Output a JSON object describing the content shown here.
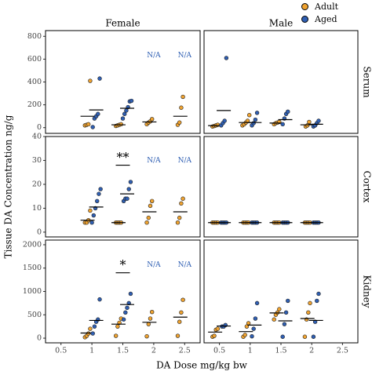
{
  "colors": {
    "adult": "#F0A330",
    "aged": "#2F5FB3",
    "na_text": "#2F5FB3"
  },
  "legend": [
    {
      "name": "Adult",
      "color": "#F0A330"
    },
    {
      "name": "Aged",
      "color": "#2F5FB3"
    }
  ],
  "na_label": "N/A",
  "chart_data": {
    "type": "scatter",
    "xlabel": "DA Dose mg/kg bw",
    "ylabel": "Tissue DA Concentration ng/g",
    "columns": [
      "Female",
      "Male"
    ],
    "rows": [
      "Serum",
      "Cortex",
      "Kidney"
    ],
    "x_ticks": [
      "0.5",
      "1",
      "1.5",
      "2",
      "2.5"
    ],
    "xlim": [
      0.25,
      2.75
    ],
    "ylim": {
      "Serum": [
        -50,
        850
      ],
      "Cortex": [
        -2,
        40
      ],
      "Kidney": [
        -100,
        2100
      ]
    },
    "y_ticks": {
      "Serum": [
        "0",
        "200",
        "400",
        "600",
        "800"
      ],
      "Cortex": [
        "0",
        "10",
        "20",
        "30",
        "40"
      ],
      "Kidney": [
        "0",
        "500",
        "1000",
        "1500",
        "2000"
      ]
    },
    "panels": [
      {
        "row": "Serum",
        "col": "Female",
        "groups": [
          {
            "dose": 1,
            "series": "Adult",
            "values": [
              20,
              25,
              30,
              410
            ],
            "mean": 100
          },
          {
            "dose": 1,
            "series": "Aged",
            "values": [
              5,
              80,
              100,
              120,
              430
            ],
            "mean": 155
          },
          {
            "dose": 1.5,
            "series": "Adult",
            "values": [
              15,
              20,
              25,
              30
            ],
            "mean": 25
          },
          {
            "dose": 1.5,
            "series": "Aged",
            "values": [
              80,
              120,
              150,
              180,
              230,
              235
            ],
            "mean": 170
          },
          {
            "dose": 2,
            "series": "Adult",
            "values": [
              30,
              45,
              55,
              75
            ],
            "mean": 50
          },
          {
            "dose": 2.5,
            "series": "Adult",
            "values": [
              25,
              45,
              175,
              270
            ],
            "mean": 100
          }
        ],
        "na": [
          2,
          2.5
        ],
        "annotations": []
      },
      {
        "row": "Serum",
        "col": "Male",
        "groups": [
          {
            "dose": 0.5,
            "series": "Adult",
            "values": [
              10,
              15,
              20,
              25
            ],
            "mean": 18
          },
          {
            "dose": 0.5,
            "series": "Aged",
            "values": [
              20,
              40,
              60,
              610
            ],
            "mean": 150
          },
          {
            "dose": 1,
            "series": "Adult",
            "values": [
              20,
              30,
              45,
              60,
              110
            ],
            "mean": 45
          },
          {
            "dose": 1,
            "series": "Aged",
            "values": [
              20,
              40,
              70,
              130
            ],
            "mean": 45
          },
          {
            "dose": 1.5,
            "series": "Adult",
            "values": [
              30,
              40,
              45,
              50
            ],
            "mean": 40
          },
          {
            "dose": 1.5,
            "series": "Aged",
            "values": [
              30,
              80,
              120,
              140
            ],
            "mean": 70
          },
          {
            "dose": 2,
            "series": "Adult",
            "values": [
              10,
              20,
              50
            ],
            "mean": 25
          },
          {
            "dose": 2,
            "series": "Aged",
            "values": [
              10,
              20,
              40,
              60
            ],
            "mean": 30
          }
        ],
        "na": [],
        "annotations": []
      },
      {
        "row": "Cortex",
        "col": "Female",
        "groups": [
          {
            "dose": 1,
            "series": "Adult",
            "values": [
              4,
              4,
              5,
              9
            ],
            "mean": 5
          },
          {
            "dose": 1,
            "series": "Aged",
            "values": [
              4,
              7,
              10,
              13,
              16,
              18
            ],
            "mean": 10.5
          },
          {
            "dose": 1.5,
            "series": "Adult",
            "values": [
              4,
              4,
              4,
              4
            ],
            "mean": 4
          },
          {
            "dose": 1.5,
            "series": "Aged",
            "values": [
              13,
              14,
              14,
              18,
              21
            ],
            "mean": 16
          },
          {
            "dose": 2,
            "series": "Adult",
            "values": [
              4,
              6,
              11,
              13
            ],
            "mean": 8.5
          },
          {
            "dose": 2.5,
            "series": "Adult",
            "values": [
              4,
              6,
              12,
              14
            ],
            "mean": 8.5
          }
        ],
        "na": [
          2,
          2.5
        ],
        "annotations": [
          {
            "dose": 1.5,
            "text": "**",
            "line_y": 28
          }
        ]
      },
      {
        "row": "Cortex",
        "col": "Male",
        "groups": [
          {
            "dose": 0.5,
            "series": "Adult",
            "values": [
              4,
              4,
              4,
              4
            ],
            "mean": 4
          },
          {
            "dose": 0.5,
            "series": "Aged",
            "values": [
              4,
              4,
              4,
              4
            ],
            "mean": 4
          },
          {
            "dose": 1,
            "series": "Adult",
            "values": [
              4,
              4,
              4,
              4
            ],
            "mean": 4
          },
          {
            "dose": 1,
            "series": "Aged",
            "values": [
              4,
              4,
              4,
              4
            ],
            "mean": 4
          },
          {
            "dose": 1.5,
            "series": "Adult",
            "values": [
              4,
              4,
              4,
              4
            ],
            "mean": 4
          },
          {
            "dose": 1.5,
            "series": "Aged",
            "values": [
              4,
              4,
              4,
              4
            ],
            "mean": 4
          },
          {
            "dose": 2,
            "series": "Adult",
            "values": [
              4,
              4,
              4,
              4
            ],
            "mean": 4
          },
          {
            "dose": 2,
            "series": "Aged",
            "values": [
              4,
              4,
              4,
              4
            ],
            "mean": 4
          }
        ],
        "na": [],
        "annotations": []
      },
      {
        "row": "Kidney",
        "col": "Female",
        "groups": [
          {
            "dose": 1,
            "series": "Adult",
            "values": [
              20,
              50,
              100,
              200
            ],
            "mean": 110
          },
          {
            "dose": 1,
            "series": "Aged",
            "values": [
              100,
              250,
              350,
              400,
              830
            ],
            "mean": 380
          },
          {
            "dose": 1.5,
            "series": "Adult",
            "values": [
              50,
              250,
              330,
              420
            ],
            "mean": 300
          },
          {
            "dose": 1.5,
            "series": "Aged",
            "values": [
              400,
              550,
              650,
              750,
              950
            ],
            "mean": 720
          },
          {
            "dose": 2,
            "series": "Adult",
            "values": [
              40,
              300,
              420,
              560
            ],
            "mean": 340
          },
          {
            "dose": 2.5,
            "series": "Adult",
            "values": [
              50,
              350,
              550,
              820
            ],
            "mean": 450
          }
        ],
        "na": [
          2,
          2.5
        ],
        "annotations": [
          {
            "dose": 1.5,
            "text": "*",
            "line_y": 1400
          }
        ]
      },
      {
        "row": "Kidney",
        "col": "Male",
        "groups": [
          {
            "dose": 0.5,
            "series": "Adult",
            "values": [
              30,
              50,
              180,
              200
            ],
            "mean": 130
          },
          {
            "dose": 0.5,
            "series": "Aged",
            "values": [
              250,
              250,
              280
            ],
            "mean": 260
          },
          {
            "dose": 1,
            "series": "Adult",
            "values": [
              30,
              70,
              250,
              320
            ],
            "mean": 140
          },
          {
            "dose": 1,
            "series": "Aged",
            "values": [
              40,
              200,
              420,
              750
            ],
            "mean": 280
          },
          {
            "dose": 1.5,
            "series": "Adult",
            "values": [
              400,
              500,
              550,
              620
            ],
            "mean": 540
          },
          {
            "dose": 1.5,
            "series": "Aged",
            "values": [
              30,
              300,
              550,
              800
            ],
            "mean": 370
          },
          {
            "dose": 2,
            "series": "Adult",
            "values": [
              30,
              400,
              550,
              750
            ],
            "mean": 420
          },
          {
            "dose": 2,
            "series": "Aged",
            "values": [
              30,
              350,
              800,
              950
            ],
            "mean": 380
          }
        ],
        "na": [],
        "annotations": []
      }
    ]
  }
}
